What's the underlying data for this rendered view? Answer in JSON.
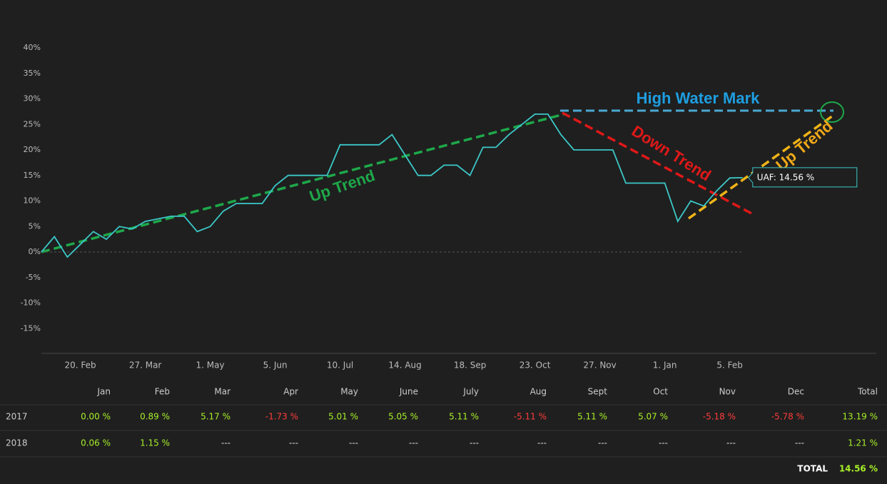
{
  "chart_data": {
    "type": "line",
    "categories": [
      null,
      null,
      null,
      "20. Feb",
      null,
      null,
      null,
      null,
      "27. Mar",
      null,
      null,
      null,
      null,
      "1. May",
      null,
      null,
      null,
      null,
      "5. Jun",
      null,
      null,
      null,
      null,
      "10. Jul",
      null,
      null,
      null,
      null,
      "14. Aug",
      null,
      null,
      null,
      null,
      "18. Sep",
      null,
      null,
      null,
      null,
      "23. Oct",
      null,
      null,
      null,
      null,
      "27. Nov",
      null,
      null,
      null,
      null,
      "1. Jan",
      null,
      null,
      null,
      null,
      "5. Feb",
      null
    ],
    "values": [
      0,
      3,
      -1,
      1.5,
      4,
      2.5,
      5,
      4.5,
      6,
      6.5,
      7,
      7,
      4,
      5,
      8,
      9.5,
      9.5,
      9.5,
      13,
      15,
      15,
      15,
      15,
      21,
      21,
      21,
      21,
      23,
      19,
      15,
      15,
      17,
      17,
      15,
      20.5,
      20.5,
      23,
      25,
      27,
      27,
      23,
      20,
      20,
      20,
      20,
      13.5,
      13.5,
      13.5,
      13.5,
      6,
      10,
      9,
      12,
      14.5,
      14.56
    ],
    "color": "#3cc8c8",
    "ylim": [
      -20,
      40
    ],
    "yticks": [
      {
        "value": -15,
        "label": "-15%"
      },
      {
        "value": -10,
        "label": "-10%"
      },
      {
        "value": -5,
        "label": "-5%"
      },
      {
        "value": 0,
        "label": "0%"
      },
      {
        "value": 5,
        "label": "5%"
      },
      {
        "value": 10,
        "label": "10%"
      },
      {
        "value": 15,
        "label": "15%"
      },
      {
        "value": 20,
        "label": "20%"
      },
      {
        "value": 25,
        "label": "25%"
      },
      {
        "value": 30,
        "label": "30%"
      },
      {
        "value": 35,
        "label": "35%"
      },
      {
        "value": 40,
        "label": "40%"
      }
    ],
    "annotations": {
      "high_water_mark": "High Water Mark",
      "up_trend_1": "Up Trend",
      "down_trend": "Down Trend",
      "up_trend_2": "Up Trend",
      "tooltip": "UAF: 14.56 %"
    }
  },
  "table": {
    "columns": [
      "Jan",
      "Feb",
      "Mar",
      "Apr",
      "May",
      "June",
      "July",
      "Aug",
      "Sept",
      "Oct",
      "Nov",
      "Dec",
      "Total"
    ],
    "rows": [
      {
        "year": "2017",
        "cells": [
          "0.00 %",
          "0.89 %",
          "5.17 %",
          "-1.73 %",
          "5.01 %",
          "5.05 %",
          "5.11 %",
          "-5.11 %",
          "5.11 %",
          "5.07 %",
          "-5.18 %",
          "-5.78 %",
          "13.19 %"
        ]
      },
      {
        "year": "2018",
        "cells": [
          "0.06 %",
          "1.15 %",
          "---",
          "---",
          "---",
          "---",
          "---",
          "---",
          "---",
          "---",
          "---",
          "---",
          "1.21 %"
        ]
      }
    ],
    "total_label": "TOTAL",
    "total_value": "14.56 %",
    "positive_color": "#a8f028",
    "negative_color": "#ff3c3c"
  }
}
